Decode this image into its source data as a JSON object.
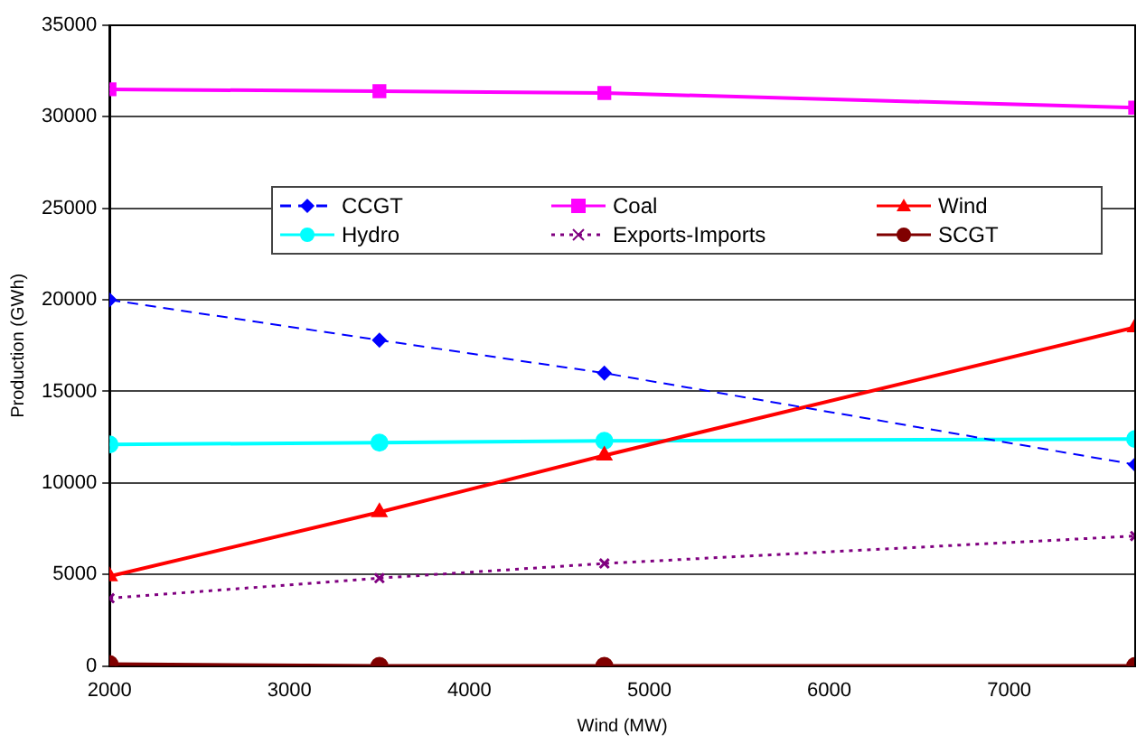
{
  "chart_data": {
    "type": "line",
    "xlabel": "Wind (MW)",
    "ylabel": "Production (GWh)",
    "x": [
      2000,
      3500,
      4750,
      7700
    ],
    "xlim": [
      2000,
      7700
    ],
    "xticks": [
      2000,
      3000,
      4000,
      5000,
      6000,
      7000
    ],
    "ylim": [
      0,
      35000
    ],
    "yticks": [
      0,
      5000,
      10000,
      15000,
      20000,
      25000,
      30000,
      35000
    ],
    "grid": "y",
    "legend": "top",
    "series": [
      {
        "name": "CCGT",
        "color": "#0000ff",
        "marker": "diamond",
        "line_style": "dashed",
        "values": [
          20000,
          17800,
          16000,
          11000
        ]
      },
      {
        "name": "Coal",
        "color": "#ff00ff",
        "marker": "square",
        "line_style": "solid",
        "values": [
          31500,
          31400,
          31300,
          30500
        ]
      },
      {
        "name": "Wind",
        "color": "#ff0000",
        "marker": "triangle",
        "line_style": "solid",
        "values": [
          4900,
          8400,
          11500,
          18500
        ]
      },
      {
        "name": "Hydro",
        "color": "#00ffff",
        "marker": "circle",
        "line_style": "solid",
        "values": [
          12100,
          12200,
          12300,
          12400
        ]
      },
      {
        "name": "Exports-Imports",
        "color": "#800080",
        "marker": "cross",
        "line_style": "dotted",
        "values": [
          3700,
          4800,
          5600,
          7100
        ]
      },
      {
        "name": "SCGT",
        "color": "#800000",
        "marker": "circle",
        "line_style": "solid",
        "values": [
          100,
          0,
          0,
          0
        ]
      }
    ]
  }
}
